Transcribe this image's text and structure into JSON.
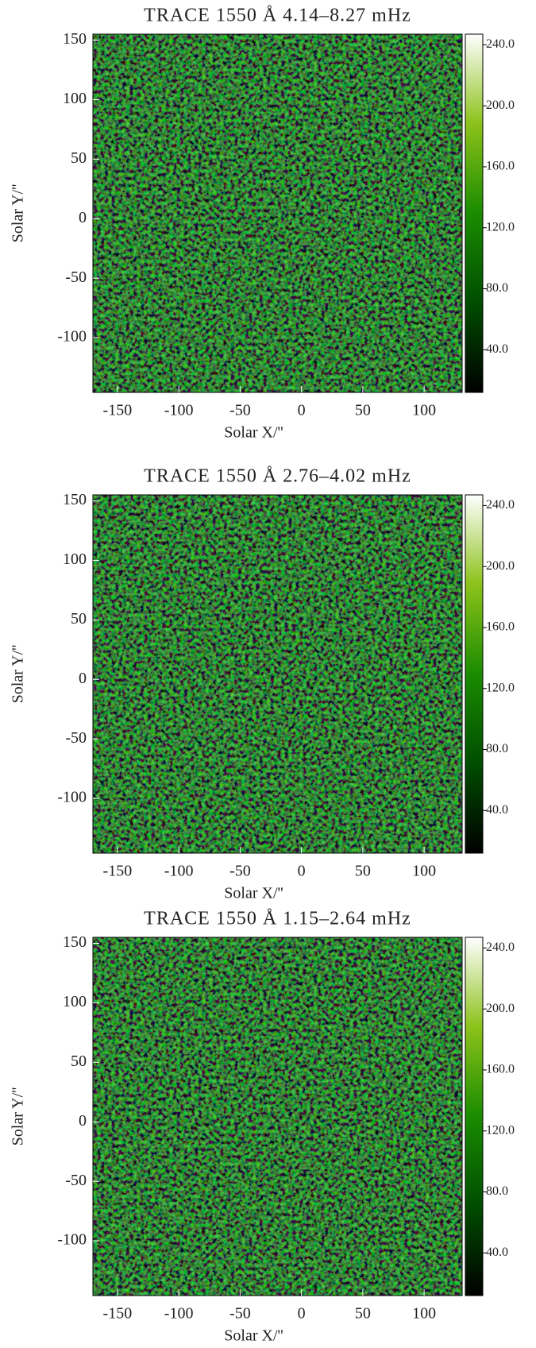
{
  "chart_data": [
    {
      "type": "image",
      "title": "TRACE 1550 Å 4.14–8.27 mHz",
      "xlabel": "Solar X/''",
      "ylabel": "Solar Y/''",
      "xlim": [
        -170,
        131
      ],
      "ylim": [
        -146,
        155
      ],
      "xticks": [
        -150,
        -100,
        -50,
        0,
        50,
        100
      ],
      "yticks": [
        -100,
        -50,
        0,
        50,
        100,
        150
      ],
      "colormap": [
        "#000000",
        "#004d00",
        "#1a8c00",
        "#8cc21a",
        "#ffffff"
      ],
      "colorbar": {
        "lim": [
          12,
          247
        ],
        "ticks": [
          {
            "value": 40,
            "label": "40.0"
          },
          {
            "value": 80,
            "label": "80.0"
          },
          {
            "value": 120,
            "label": "120.0"
          },
          {
            "value": 160,
            "label": "160.0"
          },
          {
            "value": 200,
            "label": "200.0"
          },
          {
            "value": 240,
            "label": "240.0"
          }
        ]
      }
    },
    {
      "type": "image",
      "title": "TRACE 1550 Å 2.76–4.02 mHz",
      "xlabel": "Solar X/''",
      "ylabel": "Solar Y/''",
      "xlim": [
        -170,
        131
      ],
      "ylim": [
        -146,
        155
      ],
      "xticks": [
        -150,
        -100,
        -50,
        0,
        50,
        100
      ],
      "yticks": [
        -100,
        -50,
        0,
        50,
        100,
        150
      ],
      "colormap": [
        "#000000",
        "#004d00",
        "#1a8c00",
        "#8cc21a",
        "#ffffff"
      ],
      "colorbar": {
        "lim": [
          12,
          247
        ],
        "ticks": [
          {
            "value": 40,
            "label": "40.0"
          },
          {
            "value": 80,
            "label": "80.0"
          },
          {
            "value": 120,
            "label": "120.0"
          },
          {
            "value": 160,
            "label": "160.0"
          },
          {
            "value": 200,
            "label": "200.0"
          },
          {
            "value": 240,
            "label": "240.0"
          }
        ]
      }
    },
    {
      "type": "image",
      "title": "TRACE 1550 Å 1.15–2.64 mHz",
      "xlabel": "Solar X/''",
      "ylabel": "Solar Y/''",
      "xlim": [
        -170,
        131
      ],
      "ylim": [
        -146,
        155
      ],
      "xticks": [
        -150,
        -100,
        -50,
        0,
        50,
        100
      ],
      "yticks": [
        -100,
        -50,
        0,
        50,
        100,
        150
      ],
      "colormap": [
        "#000000",
        "#004d00",
        "#1a8c00",
        "#8cc21a",
        "#ffffff"
      ],
      "colorbar": {
        "lim": [
          12,
          247
        ],
        "ticks": [
          {
            "value": 40,
            "label": "40.0"
          },
          {
            "value": 80,
            "label": "80.0"
          },
          {
            "value": 120,
            "label": "120.0"
          },
          {
            "value": 160,
            "label": "160.0"
          },
          {
            "value": 200,
            "label": "200.0"
          },
          {
            "value": 240,
            "label": "240.0"
          }
        ]
      }
    }
  ]
}
